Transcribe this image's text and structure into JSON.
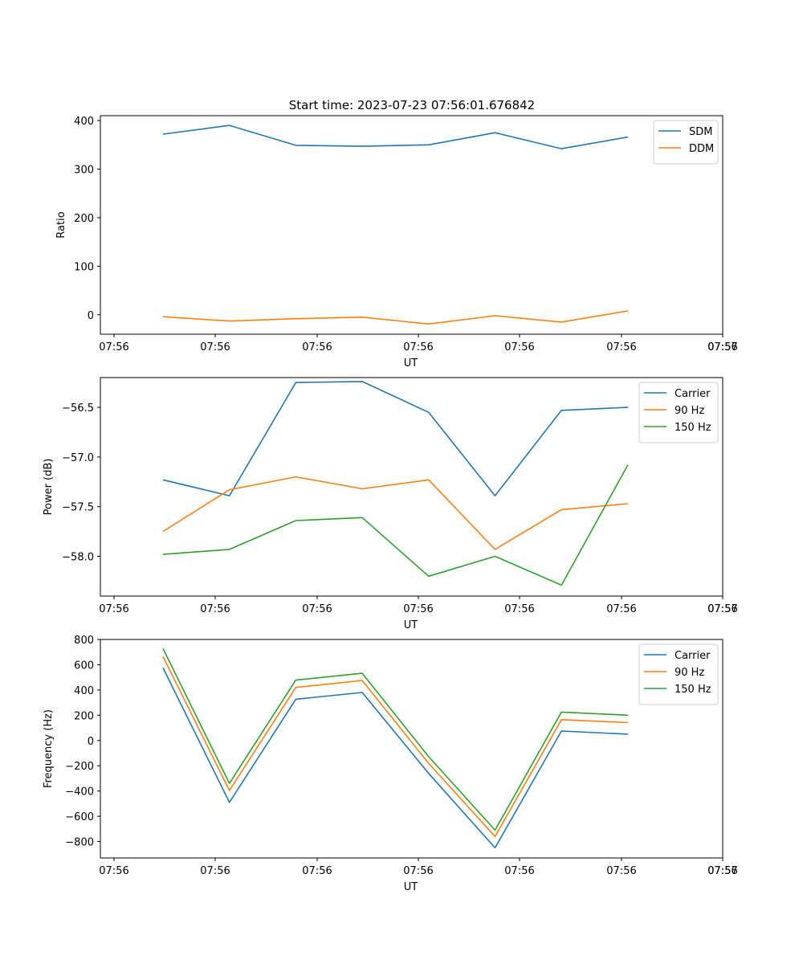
{
  "figure_title": "Start time: 2023-07-23 07:56:01.676842",
  "colors": {
    "c0": "#1f77b4",
    "c1": "#ff7f0e",
    "c2": "#2ca02c",
    "axis": "#000000",
    "legend_border": "#cccccc"
  },
  "chart_data": [
    {
      "type": "line",
      "title": "Start time: 2023-07-23 07:56:01.676842",
      "xlabel": "UT",
      "ylabel": "Ratio",
      "x_tick_labels": [
        "07:56",
        "07:56",
        "07:56",
        "07:56",
        "07:56",
        "07:56",
        "07:56",
        "07:57"
      ],
      "x": [
        1,
        2,
        3,
        4,
        5,
        6,
        7,
        8
      ],
      "xlim": [
        -0.2,
        9
      ],
      "ylim": [
        -40,
        410
      ],
      "yticks": [
        0,
        100,
        200,
        300,
        400
      ],
      "ytick_labels": [
        "0",
        "100",
        "200",
        "300",
        "400"
      ],
      "legend_position": "top-right",
      "series": [
        {
          "name": "SDM",
          "color": "#1f77b4",
          "values": [
            372,
            390,
            349,
            347,
            350,
            375,
            342,
            366
          ]
        },
        {
          "name": "DDM",
          "color": "#ff7f0e",
          "values": [
            -4,
            -13,
            -8,
            -5,
            -19,
            -2,
            -15,
            8
          ]
        }
      ]
    },
    {
      "type": "line",
      "title": "",
      "xlabel": "UT",
      "ylabel": "Power (dB)",
      "x_tick_labels": [
        "07:56",
        "07:56",
        "07:56",
        "07:56",
        "07:56",
        "07:56",
        "07:56",
        "07:57"
      ],
      "x": [
        1,
        2,
        3,
        4,
        5,
        6,
        7,
        8
      ],
      "xlim": [
        -0.2,
        9
      ],
      "ylim": [
        -58.4,
        -56.2
      ],
      "yticks": [
        -58.0,
        -57.5,
        -57.0,
        -56.5
      ],
      "ytick_labels": [
        "−58.0",
        "−57.5",
        "−57.0",
        "−56.5"
      ],
      "legend_position": "top-right",
      "series": [
        {
          "name": "Carrier",
          "color": "#1f77b4",
          "values": [
            -57.23,
            -57.39,
            -56.25,
            -56.24,
            -56.55,
            -57.39,
            -56.53,
            -56.5
          ]
        },
        {
          "name": "90 Hz",
          "color": "#ff7f0e",
          "values": [
            -57.75,
            -57.33,
            -57.2,
            -57.32,
            -57.23,
            -57.93,
            -57.53,
            -57.47
          ]
        },
        {
          "name": "150 Hz",
          "color": "#2ca02c",
          "values": [
            -57.98,
            -57.93,
            -57.64,
            -57.61,
            -58.2,
            -58.0,
            -58.29,
            -57.08
          ]
        }
      ]
    },
    {
      "type": "line",
      "title": "",
      "xlabel": "UT",
      "ylabel": "Frequency (Hz)",
      "x_tick_labels": [
        "07:56",
        "07:56",
        "07:56",
        "07:56",
        "07:56",
        "07:56",
        "07:56",
        "07:57"
      ],
      "x": [
        1,
        2,
        3,
        4,
        5,
        6,
        7,
        8
      ],
      "xlim": [
        -0.2,
        9
      ],
      "ylim": [
        -930,
        800
      ],
      "yticks": [
        -800,
        -600,
        -400,
        -200,
        0,
        200,
        400,
        600,
        800
      ],
      "ytick_labels": [
        "−800",
        "−600",
        "−400",
        "−200",
        "0",
        "200",
        "400",
        "600",
        "800"
      ],
      "legend_position": "top-right",
      "series": [
        {
          "name": "Carrier",
          "color": "#1f77b4",
          "values": [
            575,
            -490,
            327,
            380,
            -260,
            -850,
            75,
            50
          ]
        },
        {
          "name": "90 Hz",
          "color": "#ff7f0e",
          "values": [
            665,
            -395,
            420,
            475,
            -180,
            -760,
            165,
            142
          ]
        },
        {
          "name": "150 Hz",
          "color": "#2ca02c",
          "values": [
            728,
            -340,
            478,
            532,
            -128,
            -710,
            225,
            200
          ]
        }
      ]
    }
  ]
}
